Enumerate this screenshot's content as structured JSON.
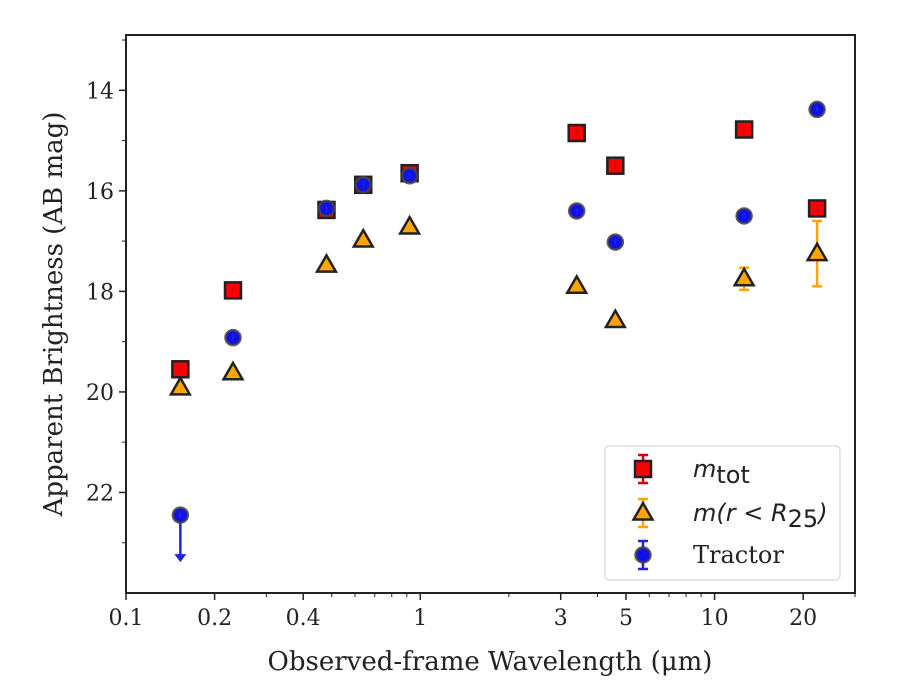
{
  "chart_data": {
    "type": "scatter",
    "xlabel": "Observed-frame Wavelength (μm)",
    "ylabel": "Apparent Brightness (AB mag)",
    "xscale": "log",
    "xlim": [
      0.1,
      30
    ],
    "ylim": [
      24,
      12.9
    ],
    "y_inverted": true,
    "x_ticks": [
      {
        "value": 0.1,
        "label": "0.1"
      },
      {
        "value": 0.2,
        "label": "0.2"
      },
      {
        "value": 0.4,
        "label": "0.4"
      },
      {
        "value": 1,
        "label": "1"
      },
      {
        "value": 3,
        "label": "3"
      },
      {
        "value": 5,
        "label": "5"
      },
      {
        "value": 10,
        "label": "10"
      },
      {
        "value": 20,
        "label": "20"
      }
    ],
    "y_ticks": [
      {
        "value": 14,
        "label": "14"
      },
      {
        "value": 16,
        "label": "16"
      },
      {
        "value": 18,
        "label": "18"
      },
      {
        "value": 20,
        "label": "20"
      },
      {
        "value": 22,
        "label": "22"
      }
    ],
    "legend_position": "lower-right",
    "series": [
      {
        "name": "m_tot",
        "legend_label": {
          "main": "m",
          "sub": "tot"
        },
        "marker": "square",
        "face_color": "#ff0000",
        "edge_color": "#222222",
        "error_color": "#dd0000",
        "points": [
          {
            "x": 0.153,
            "y": 19.55
          },
          {
            "x": 0.231,
            "y": 17.98
          },
          {
            "x": 0.48,
            "y": 16.38
          },
          {
            "x": 0.64,
            "y": 15.88
          },
          {
            "x": 0.92,
            "y": 15.65
          },
          {
            "x": 3.4,
            "y": 14.85
          },
          {
            "x": 4.6,
            "y": 15.5
          },
          {
            "x": 12.6,
            "y": 14.78
          },
          {
            "x": 22.3,
            "y": 16.35
          }
        ]
      },
      {
        "name": "m(r < R25)",
        "legend_label": {
          "main": "m(r < R",
          "sub": "25",
          "tail": ")"
        },
        "marker": "triangle",
        "face_color": "#ffa500",
        "edge_color": "#222222",
        "error_color": "#ffa500",
        "points": [
          {
            "x": 0.153,
            "y": 19.92
          },
          {
            "x": 0.231,
            "y": 19.62
          },
          {
            "x": 0.48,
            "y": 17.48
          },
          {
            "x": 0.64,
            "y": 16.98
          },
          {
            "x": 0.92,
            "y": 16.72
          },
          {
            "x": 3.4,
            "y": 17.9
          },
          {
            "x": 4.6,
            "y": 18.58
          },
          {
            "x": 12.6,
            "y": 17.75,
            "err": 0.22
          },
          {
            "x": 22.3,
            "y": 17.25,
            "err": 0.65
          }
        ]
      },
      {
        "name": "Tractor",
        "legend_label": {
          "main": "Tractor"
        },
        "marker": "circle",
        "face_color": "#1010ee",
        "edge_color": "#444444",
        "error_color": "#2222dd",
        "points": [
          {
            "x": 0.153,
            "y": 22.45,
            "upper_limit": true
          },
          {
            "x": 0.231,
            "y": 18.92
          },
          {
            "x": 0.48,
            "y": 16.35
          },
          {
            "x": 0.64,
            "y": 15.88
          },
          {
            "x": 0.92,
            "y": 15.7
          },
          {
            "x": 3.4,
            "y": 16.4
          },
          {
            "x": 4.6,
            "y": 17.02
          },
          {
            "x": 12.6,
            "y": 16.5
          },
          {
            "x": 22.3,
            "y": 14.38
          }
        ]
      }
    ]
  }
}
